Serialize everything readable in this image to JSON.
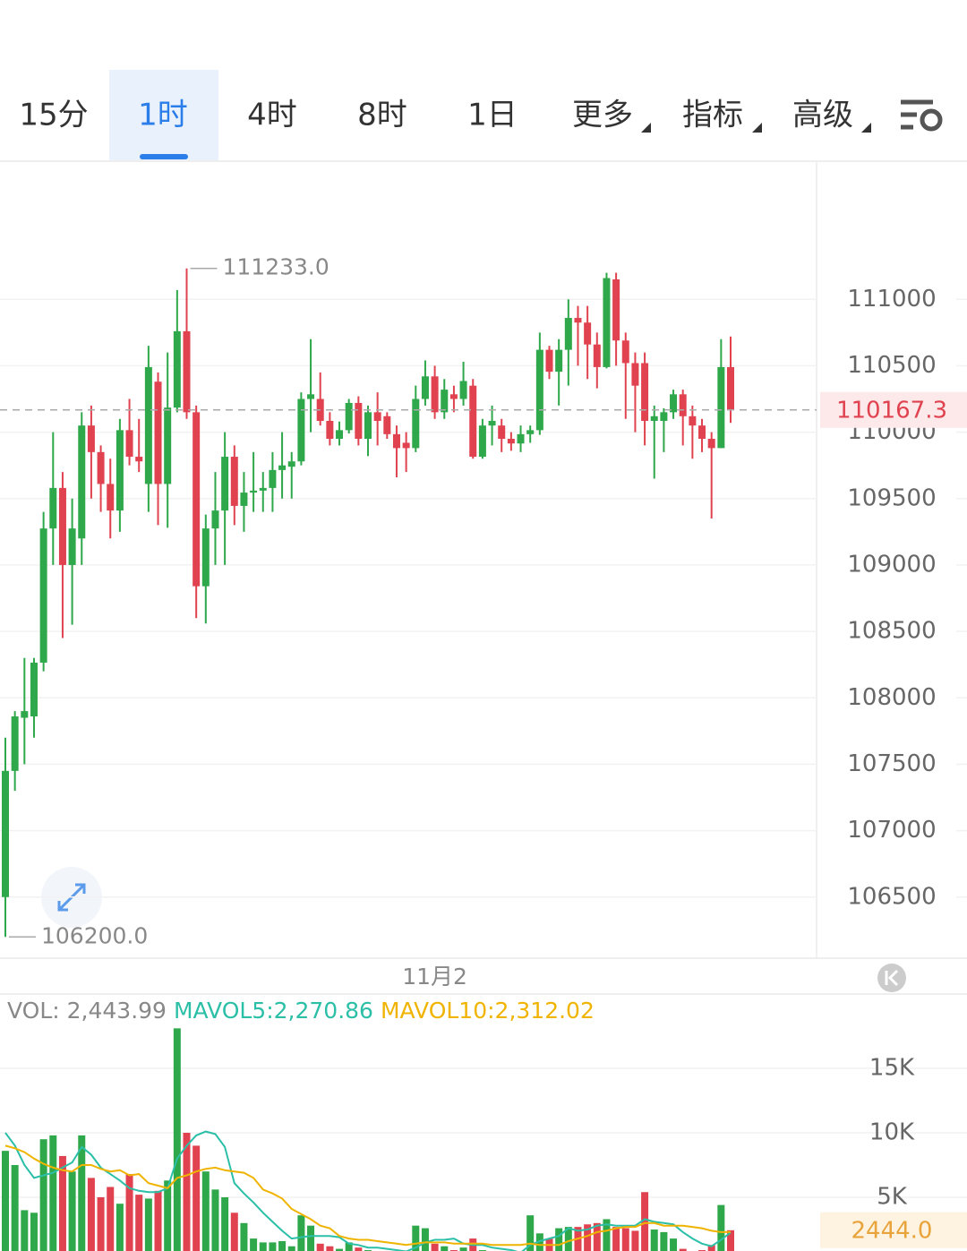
{
  "chart_data": {
    "type": "candlestick",
    "tabs": [
      "15分",
      "1时",
      "4时",
      "8时",
      "1日",
      "更多",
      "指标",
      "高级"
    ],
    "selected_tab": 1,
    "categories": [
      null,
      null,
      null,
      null,
      null,
      null,
      null,
      null,
      null,
      null,
      null,
      null,
      null,
      null,
      null,
      null,
      null,
      null,
      null,
      null,
      null,
      null,
      null,
      null,
      null,
      null,
      null,
      null,
      null,
      null,
      null,
      null,
      null,
      null,
      null,
      null,
      null,
      null,
      null,
      null,
      null,
      null,
      null,
      null,
      null,
      "11月2",
      null,
      null,
      null,
      null,
      null,
      null,
      null,
      null,
      null,
      null,
      null,
      null,
      null,
      null,
      null,
      null,
      null,
      null,
      null,
      null,
      null,
      null,
      null,
      null,
      null,
      null,
      null,
      null,
      null,
      null,
      null
    ],
    "open": [
      106500,
      107450,
      107850,
      107860,
      108265,
      109275,
      109580,
      109000,
      109200,
      110050,
      109850,
      109610,
      109410,
      110015,
      109815,
      109610,
      110380,
      109610,
      110185,
      110760,
      110150,
      108840,
      109275,
      109410,
      109815,
      109445,
      109545,
      109560,
      109580,
      109715,
      109740,
      109780,
      110250,
      110250,
      110085,
      109950,
      110015,
      110220,
      109950,
      110150,
      110120,
      109985,
      109920,
      109880,
      110250,
      110420,
      110150,
      110285,
      110250,
      110350,
      109815,
      110050,
      110050,
      109950,
      109915,
      109985,
      110015,
      110620,
      110455,
      110620,
      110860,
      110825,
      110660,
      110490,
      111150,
      110690,
      110520,
      110520,
      110085,
      110085,
      110150,
      110285,
      110120,
      110050,
      109950,
      109880,
      110490
    ],
    "close": [
      107450,
      107860,
      107900,
      108265,
      109275,
      109580,
      109000,
      109275,
      110050,
      109850,
      109610,
      109410,
      110015,
      109815,
      109780,
      110490,
      109610,
      110185,
      110760,
      110150,
      108840,
      109275,
      109410,
      109815,
      109445,
      109545,
      109560,
      109580,
      109715,
      109750,
      109780,
      110250,
      110285,
      110085,
      109950,
      110015,
      110220,
      109950,
      110150,
      110085,
      109985,
      109880,
      109880,
      110250,
      110420,
      110150,
      110320,
      110250,
      110385,
      109815,
      110050,
      110085,
      109950,
      109915,
      109985,
      110015,
      110620,
      110455,
      110620,
      110860,
      110825,
      110660,
      110490,
      111160,
      110690,
      110520,
      110350,
      110085,
      110120,
      110150,
      110285,
      110120,
      110050,
      109950,
      109880,
      110490,
      110167.3
    ],
    "high": [
      107700,
      107900,
      108300,
      108300,
      109400,
      110000,
      109700,
      109500,
      110150,
      110200,
      109900,
      109800,
      110100,
      110250,
      110100,
      110650,
      110450,
      110600,
      111070,
      111233,
      110200,
      109380,
      109700,
      110000,
      109900,
      109700,
      109850,
      109700,
      109850,
      110000,
      109850,
      110300,
      110700,
      110450,
      110150,
      110080,
      110250,
      110270,
      110200,
      110300,
      110150,
      110050,
      110000,
      110350,
      110540,
      110500,
      110400,
      110350,
      110530,
      110400,
      110100,
      110200,
      110100,
      110000,
      110050,
      110050,
      110750,
      110650,
      110700,
      111000,
      110950,
      110950,
      110750,
      111200,
      111200,
      110750,
      110600,
      110600,
      110200,
      110180,
      110320,
      110320,
      110200,
      110100,
      110000,
      110700,
      110720
    ],
    "low": [
      106200,
      107300,
      107500,
      107700,
      108200,
      109000,
      108450,
      108550,
      109000,
      109500,
      109400,
      109200,
      109250,
      109750,
      109700,
      109400,
      109300,
      109280,
      110150,
      110100,
      108600,
      108560,
      109000,
      109000,
      109300,
      109250,
      109400,
      109400,
      109400,
      109500,
      109500,
      109750,
      110000,
      110050,
      109900,
      109900,
      109990,
      109900,
      109820,
      109900,
      109950,
      109660,
      109700,
      109850,
      110200,
      110100,
      110100,
      110150,
      110200,
      109800,
      109800,
      109900,
      109850,
      109860,
      109850,
      109920,
      109980,
      110400,
      110200,
      110350,
      110500,
      110400,
      110330,
      110480,
      110500,
      110100,
      110000,
      109900,
      109650,
      109850,
      110100,
      109900,
      109800,
      109850,
      109350,
      109880,
      110070
    ],
    "up_color": "#2ea84a",
    "down_color": "#e0434f",
    "ylim": [
      106040,
      112040
    ],
    "yticks": [
      106500,
      107000,
      107500,
      108000,
      108500,
      109000,
      109500,
      110000,
      110500,
      111000
    ],
    "grid": true,
    "high_marker": {
      "value": 111233,
      "label": "111233.0"
    },
    "low_marker": {
      "value": 106200,
      "label": "106200.0"
    },
    "last_price": 110167.3,
    "volume": {
      "values": [
        8600,
        7500,
        4000,
        3800,
        9500,
        9800,
        8200,
        7000,
        9800,
        6500,
        5000,
        5800,
        4500,
        6800,
        5200,
        4900,
        5500,
        6300,
        18100,
        10000,
        9000,
        7000,
        5600,
        5000,
        3800,
        3000,
        1800,
        1500,
        1500,
        1600,
        1200,
        3600,
        2800,
        1400,
        1200,
        1000,
        1500,
        1100,
        900,
        800,
        700,
        600,
        700,
        2800,
        2600,
        1400,
        1200,
        900,
        1100,
        1800,
        900,
        800,
        700,
        600,
        700,
        3600,
        2200,
        1800,
        2600,
        2700,
        2700,
        2900,
        3000,
        3300,
        2700,
        2600,
        2400,
        5400,
        2500,
        2300,
        1800,
        1000,
        800,
        900,
        1300,
        4400,
        2443.99
      ],
      "series": [
        {
          "name": "MAVOL5",
          "color": "#2bbfa8",
          "values": [
            10000,
            9000,
            7500,
            6500,
            6700,
            6900,
            7300,
            7700,
            8900,
            8300,
            7300,
            6800,
            6300,
            5700,
            5500,
            5400,
            5400,
            5700,
            8000,
            9000,
            9800,
            10100,
            9900,
            8900,
            6100,
            5300,
            4600,
            3800,
            3100,
            2400,
            1800,
            1900,
            2000,
            2000,
            2000,
            1900,
            1400,
            1300,
            1100,
            1100,
            1000,
            900,
            800,
            1100,
            1500,
            1700,
            1700,
            1800,
            1400,
            1300,
            1300,
            1100,
            1000,
            900,
            700,
            1300,
            1600,
            1800,
            2000,
            2600,
            2400,
            2500,
            2800,
            2900,
            2800,
            2800,
            2800,
            3300,
            3100,
            3000,
            2900,
            2300,
            1800,
            1400,
            1200,
            1700,
            2270.86
          ]
        },
        {
          "name": "MAVOL10",
          "color": "#f0b400",
          "values": [
            9000,
            8800,
            8500,
            8000,
            7600,
            7300,
            7100,
            7000,
            7500,
            7500,
            7200,
            7000,
            7100,
            6700,
            6800,
            6100,
            5900,
            5700,
            6500,
            6700,
            7000,
            7200,
            7300,
            7100,
            7000,
            6900,
            6500,
            5600,
            5300,
            4900,
            4100,
            3700,
            3300,
            2800,
            2600,
            2000,
            1800,
            1700,
            1700,
            1600,
            1500,
            1400,
            1300,
            1400,
            1500,
            1500,
            1500,
            1400,
            1400,
            1400,
            1400,
            1300,
            1300,
            1300,
            1300,
            1400,
            1300,
            1300,
            1300,
            1600,
            1800,
            2000,
            2300,
            2400,
            2600,
            2700,
            2700,
            3000,
            3000,
            2800,
            2800,
            2800,
            2700,
            2600,
            2400,
            2300,
            2312.02
          ]
        }
      ],
      "legend": [
        {
          "text": "VOL: 2,443.99",
          "color": "#888888"
        },
        {
          "text": "MAVOL5:2,270.86",
          "color": "#2bbfa8"
        },
        {
          "text": "MAVOL10:2,312.02",
          "color": "#f0b400"
        }
      ],
      "ylim": [
        0,
        20000
      ],
      "yticks": [
        {
          "value": 5000,
          "label": "5K"
        },
        {
          "value": 10000,
          "label": "10K"
        },
        {
          "value": 15000,
          "label": "15K"
        }
      ],
      "last": {
        "value": 2444.0,
        "label": "2444.0"
      }
    }
  }
}
